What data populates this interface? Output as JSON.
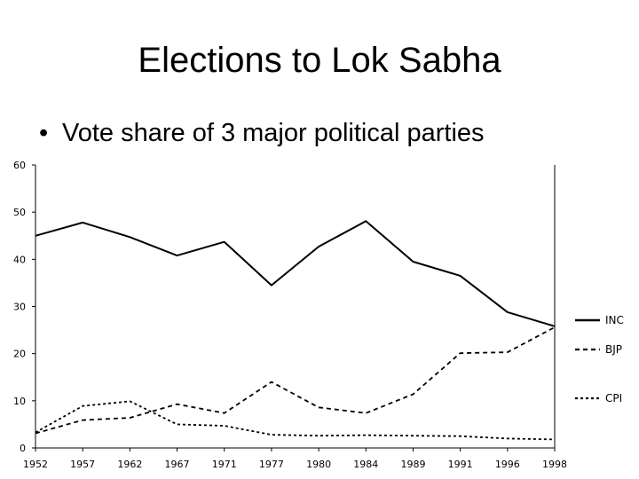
{
  "slide": {
    "title": "Elections to Lok Sabha",
    "bullet": "Vote share of 3 major political parties"
  },
  "chart_data": {
    "type": "line",
    "title": "",
    "xlabel": "",
    "ylabel": "",
    "categories": [
      "1952",
      "1957",
      "1962",
      "1967",
      "1971",
      "1977",
      "1980",
      "1984",
      "1989",
      "1991",
      "1996",
      "1998"
    ],
    "ylim": [
      0,
      60
    ],
    "yticks": [
      0,
      10,
      20,
      30,
      40,
      50,
      60
    ],
    "grid": false,
    "legend_position": "right",
    "series": [
      {
        "name": "INC",
        "style": "solid",
        "color": "#000000",
        "values": [
          45.0,
          47.8,
          44.7,
          40.8,
          43.7,
          34.5,
          42.7,
          48.1,
          39.5,
          36.5,
          28.8,
          25.8
        ]
      },
      {
        "name": "BJP",
        "style": "dashed",
        "color": "#000000",
        "values": [
          3.1,
          5.9,
          6.4,
          9.3,
          7.4,
          14.0,
          8.6,
          7.4,
          11.4,
          20.1,
          20.3,
          25.6
        ]
      },
      {
        "name": "CPI",
        "style": "dashed-fine",
        "color": "#000000",
        "values": [
          3.3,
          8.9,
          9.9,
          5.0,
          4.7,
          2.8,
          2.6,
          2.7,
          2.6,
          2.5,
          2.0,
          1.8
        ]
      }
    ]
  }
}
